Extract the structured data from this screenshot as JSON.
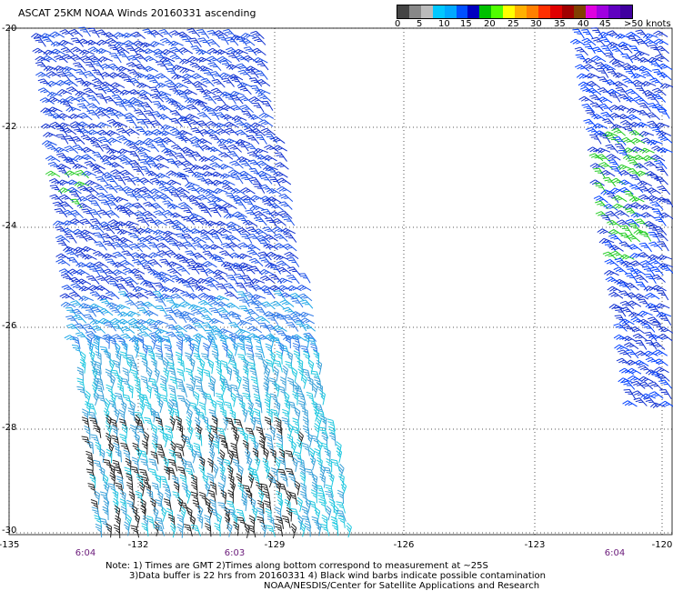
{
  "title": "ASCAT 25KM NOAA Winds 20160331 ascending",
  "scale": {
    "colors": [
      "#444444",
      "#888888",
      "#bbbbbb",
      "#00c8ff",
      "#00a8ff",
      "#0050ff",
      "#0000c0",
      "#00c000",
      "#50ff00",
      "#ffff00",
      "#ffb000",
      "#ff8000",
      "#ff3000",
      "#e00000",
      "#a00000",
      "#804000",
      "#e000e0",
      "#a000e0",
      "#6000c0",
      "#4000a0"
    ],
    "labels": [
      "0",
      "5",
      "10",
      "15",
      "20",
      "25",
      "30",
      "35",
      "40",
      "45",
      ">50 knots"
    ]
  },
  "lat_labels": [
    "-20",
    "-22",
    "-24",
    "-26",
    "-28",
    "-30"
  ],
  "lon_labels": [
    "-135",
    "-132",
    "-129",
    "-126",
    "-123",
    "-120"
  ],
  "times": [
    "6:04",
    "6:03",
    "6:04"
  ],
  "notes": [
    "Note: 1) Times are GMT 2)Times along bottom correspond to measurement at ~25S",
    "3)Data buffer is 22 hrs from 20160331 4) Black wind barbs indicate possible contamination",
    "NOAA/NESDIS/Center for Satellite Applications and Research"
  ]
}
